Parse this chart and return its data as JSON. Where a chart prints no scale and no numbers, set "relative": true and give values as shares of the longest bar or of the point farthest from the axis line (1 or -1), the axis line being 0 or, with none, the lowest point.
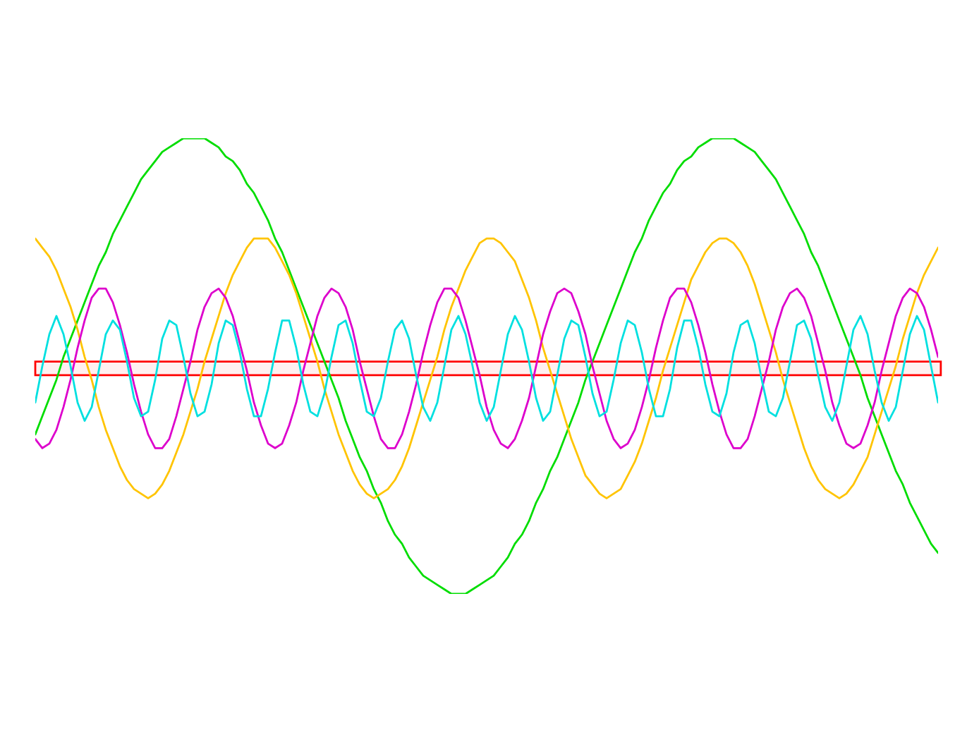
{
  "chart_data": {
    "type": "line",
    "relative": true,
    "tick_labels": false,
    "categories": [
      null,
      null,
      null,
      null,
      null,
      null,
      null,
      null,
      null,
      null,
      null,
      null,
      null,
      null,
      null,
      null,
      null,
      null,
      null,
      null,
      null,
      null,
      null,
      null,
      null,
      null,
      null,
      null,
      null,
      null,
      null,
      null,
      null,
      null,
      null,
      null,
      null,
      null,
      null,
      null,
      null,
      null,
      null,
      null,
      null,
      null,
      null,
      null,
      null,
      null,
      null,
      null,
      null,
      null,
      null,
      null,
      null,
      null,
      null,
      null,
      null,
      null,
      null,
      null,
      null,
      null,
      null,
      null,
      null,
      null,
      null,
      null,
      null,
      null,
      null,
      null,
      null,
      null,
      null,
      null,
      null,
      null,
      null,
      null,
      null,
      null,
      null,
      null,
      null,
      null,
      null,
      null,
      null,
      null,
      null,
      null,
      null,
      null,
      null,
      null,
      null,
      null,
      null,
      null,
      null,
      null,
      null,
      null,
      null,
      null,
      null,
      null,
      null,
      null,
      null,
      null,
      null,
      null,
      null,
      null,
      null,
      null,
      null,
      null,
      null,
      null,
      null,
      null,
      null
    ],
    "bands": [
      {
        "axis": "y",
        "from": 0.48,
        "to": 0.51,
        "color": "#ff0000"
      }
    ],
    "series": [
      {
        "color": "#00dd00",
        "values": [
          0.35,
          0.39,
          0.43,
          0.47,
          0.52,
          0.56,
          0.6,
          0.64,
          0.68,
          0.72,
          0.75,
          0.79,
          0.82,
          0.85,
          0.88,
          0.91,
          0.93,
          0.95,
          0.97,
          0.98,
          0.99,
          1.0,
          1.0,
          1.0,
          1.0,
          0.99,
          0.98,
          0.96,
          0.95,
          0.93,
          0.9,
          0.88,
          0.85,
          0.82,
          0.78,
          0.75,
          0.71,
          0.67,
          0.63,
          0.59,
          0.55,
          0.51,
          0.47,
          0.43,
          0.38,
          0.34,
          0.3,
          0.27,
          0.23,
          0.2,
          0.16,
          0.13,
          0.11,
          0.08,
          0.06,
          0.04,
          0.03,
          0.02,
          0.01,
          0.0,
          0.0,
          0.0,
          0.01,
          0.02,
          0.03,
          0.04,
          0.06,
          0.08,
          0.11,
          0.13,
          0.16,
          0.2,
          0.23,
          0.27,
          0.3,
          0.34,
          0.38,
          0.42,
          0.47,
          0.51,
          0.55,
          0.59,
          0.63,
          0.67,
          0.71,
          0.75,
          0.78,
          0.82,
          0.85,
          0.88,
          0.9,
          0.93,
          0.95,
          0.96,
          0.98,
          0.99,
          1.0,
          1.0,
          1.0,
          1.0,
          0.99,
          0.98,
          0.97,
          0.95,
          0.93,
          0.91,
          0.88,
          0.85,
          0.82,
          0.79,
          0.75,
          0.72,
          0.68,
          0.64,
          0.6,
          0.56,
          0.52,
          0.48,
          0.43,
          0.39,
          0.35,
          0.31,
          0.27,
          0.24,
          0.2,
          0.17,
          0.14,
          0.11,
          0.09
        ]
      },
      {
        "color": "#ffc400",
        "values": [
          0.78,
          0.76,
          0.74,
          0.71,
          0.67,
          0.63,
          0.58,
          0.52,
          0.47,
          0.41,
          0.36,
          0.32,
          0.28,
          0.25,
          0.23,
          0.22,
          0.21,
          0.22,
          0.24,
          0.27,
          0.31,
          0.35,
          0.4,
          0.45,
          0.51,
          0.56,
          0.61,
          0.66,
          0.7,
          0.73,
          0.76,
          0.78,
          0.78,
          0.78,
          0.76,
          0.73,
          0.7,
          0.66,
          0.61,
          0.56,
          0.51,
          0.45,
          0.4,
          0.35,
          0.31,
          0.27,
          0.24,
          0.22,
          0.21,
          0.22,
          0.23,
          0.25,
          0.28,
          0.32,
          0.37,
          0.42,
          0.47,
          0.52,
          0.58,
          0.63,
          0.67,
          0.71,
          0.74,
          0.77,
          0.78,
          0.78,
          0.77,
          0.75,
          0.73,
          0.69,
          0.65,
          0.6,
          0.54,
          0.49,
          0.44,
          0.39,
          0.34,
          0.3,
          0.26,
          0.24,
          0.22,
          0.21,
          0.22,
          0.23,
          0.26,
          0.29,
          0.33,
          0.38,
          0.43,
          0.49,
          0.54,
          0.59,
          0.64,
          0.69,
          0.72,
          0.75,
          0.77,
          0.78,
          0.78,
          0.77,
          0.75,
          0.72,
          0.68,
          0.63,
          0.58,
          0.53,
          0.47,
          0.42,
          0.37,
          0.32,
          0.28,
          0.25,
          0.23,
          0.22,
          0.21,
          0.22,
          0.24,
          0.27,
          0.3,
          0.35,
          0.4,
          0.45,
          0.5,
          0.56,
          0.61,
          0.66,
          0.7,
          0.73,
          0.76
        ]
      },
      {
        "color": "#dd00cc",
        "values": [
          0.34,
          0.32,
          0.33,
          0.36,
          0.41,
          0.47,
          0.54,
          0.6,
          0.65,
          0.67,
          0.67,
          0.64,
          0.59,
          0.53,
          0.46,
          0.4,
          0.35,
          0.32,
          0.32,
          0.34,
          0.39,
          0.45,
          0.51,
          0.58,
          0.63,
          0.66,
          0.67,
          0.65,
          0.61,
          0.55,
          0.49,
          0.42,
          0.37,
          0.33,
          0.32,
          0.33,
          0.37,
          0.42,
          0.49,
          0.55,
          0.61,
          0.65,
          0.67,
          0.66,
          0.63,
          0.58,
          0.51,
          0.45,
          0.39,
          0.34,
          0.32,
          0.32,
          0.35,
          0.4,
          0.46,
          0.53,
          0.59,
          0.64,
          0.67,
          0.67,
          0.65,
          0.6,
          0.54,
          0.48,
          0.41,
          0.36,
          0.33,
          0.32,
          0.34,
          0.38,
          0.43,
          0.5,
          0.57,
          0.62,
          0.66,
          0.67,
          0.66,
          0.62,
          0.57,
          0.5,
          0.44,
          0.38,
          0.34,
          0.32,
          0.33,
          0.36,
          0.41,
          0.47,
          0.54,
          0.6,
          0.65,
          0.67,
          0.67,
          0.64,
          0.59,
          0.53,
          0.46,
          0.4,
          0.35,
          0.32,
          0.32,
          0.34,
          0.39,
          0.45,
          0.51,
          0.58,
          0.63,
          0.66,
          0.67,
          0.65,
          0.61,
          0.55,
          0.49,
          0.42,
          0.37,
          0.33,
          0.32,
          0.33,
          0.37,
          0.42,
          0.49,
          0.55,
          0.61,
          0.65,
          0.67,
          0.66,
          0.63,
          0.58,
          0.52
        ]
      },
      {
        "color": "#00e0e0",
        "values": [
          0.42,
          0.5,
          0.57,
          0.61,
          0.57,
          0.5,
          0.42,
          0.38,
          0.41,
          0.49,
          0.57,
          0.6,
          0.58,
          0.51,
          0.43,
          0.39,
          0.4,
          0.47,
          0.56,
          0.6,
          0.59,
          0.52,
          0.44,
          0.39,
          0.4,
          0.46,
          0.55,
          0.6,
          0.59,
          0.53,
          0.45,
          0.39,
          0.39,
          0.45,
          0.53,
          0.6,
          0.6,
          0.54,
          0.46,
          0.4,
          0.39,
          0.44,
          0.52,
          0.59,
          0.6,
          0.55,
          0.47,
          0.4,
          0.39,
          0.43,
          0.51,
          0.58,
          0.6,
          0.56,
          0.48,
          0.41,
          0.38,
          0.42,
          0.5,
          0.58,
          0.61,
          0.57,
          0.5,
          0.42,
          0.38,
          0.41,
          0.49,
          0.57,
          0.61,
          0.58,
          0.51,
          0.43,
          0.38,
          0.4,
          0.48,
          0.56,
          0.6,
          0.59,
          0.52,
          0.44,
          0.39,
          0.4,
          0.47,
          0.55,
          0.6,
          0.59,
          0.53,
          0.45,
          0.39,
          0.39,
          0.45,
          0.54,
          0.6,
          0.6,
          0.54,
          0.46,
          0.4,
          0.39,
          0.44,
          0.53,
          0.59,
          0.6,
          0.55,
          0.47,
          0.4,
          0.39,
          0.43,
          0.51,
          0.59,
          0.6,
          0.56,
          0.48,
          0.41,
          0.38,
          0.42,
          0.5,
          0.58,
          0.61,
          0.57,
          0.49,
          0.42,
          0.38,
          0.41,
          0.49,
          0.57,
          0.61,
          0.58,
          0.5,
          0.42
        ]
      }
    ]
  }
}
